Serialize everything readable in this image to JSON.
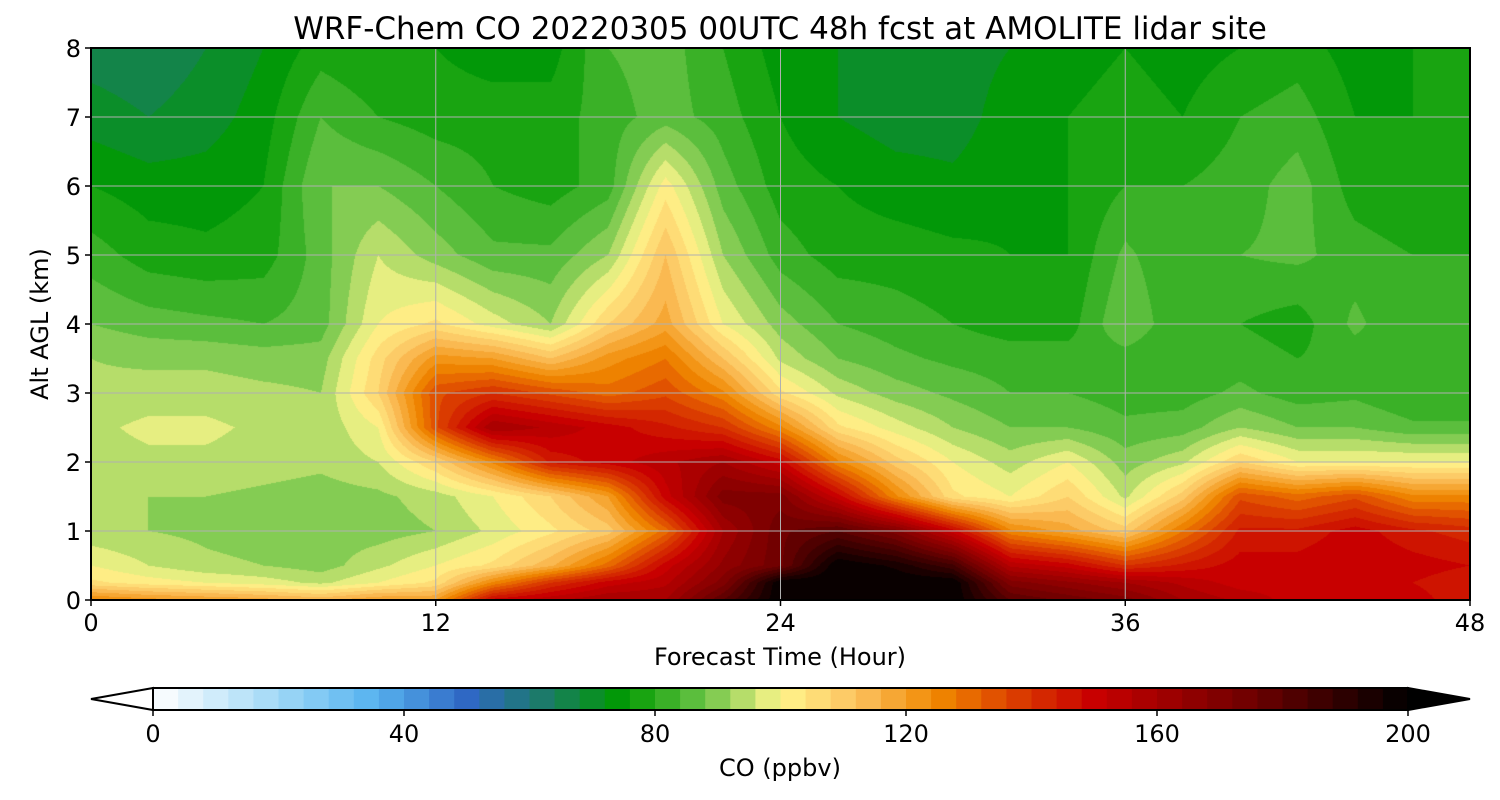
{
  "chart_data": {
    "type": "heatmap",
    "title": "WRF-Chem CO  20220305 00UTC 48h fcst at AMOLITE lidar site",
    "xlabel": "Forecast Time (Hour)",
    "ylabel": "Alt AGL (km)",
    "xlim": [
      0,
      48
    ],
    "ylim": [
      0,
      8
    ],
    "x_ticks": [
      "0",
      "12",
      "24",
      "36",
      "48"
    ],
    "y_ticks": [
      "0",
      "1",
      "2",
      "3",
      "4",
      "5",
      "6",
      "7",
      "8"
    ],
    "grid": true,
    "colorbar": {
      "label": "CO  (ppbv)",
      "range": [
        0,
        200
      ],
      "ticks": [
        "0",
        "40",
        "80",
        "120",
        "160",
        "200"
      ],
      "extend": "both",
      "orientation": "horizontal",
      "placement": "bottom",
      "colors": [
        [
          0,
          "#ffffff"
        ],
        [
          20,
          "#a0d8f6"
        ],
        [
          35,
          "#58b4f0"
        ],
        [
          50,
          "#2f68c4"
        ],
        [
          62,
          "#1c7a6a"
        ],
        [
          75,
          "#009a00"
        ],
        [
          88,
          "#6cc448"
        ],
        [
          100,
          "#fff68c"
        ],
        [
          112,
          "#fcc260"
        ],
        [
          125,
          "#f08800"
        ],
        [
          137,
          "#dc4000"
        ],
        [
          150,
          "#c80000"
        ],
        [
          175,
          "#6e0000"
        ],
        [
          200,
          "#000000"
        ]
      ]
    },
    "x": [
      0,
      2,
      4,
      6,
      8,
      10,
      12,
      14,
      16,
      18,
      20,
      22,
      24,
      26,
      28,
      30,
      32,
      34,
      36,
      38,
      40,
      42,
      44,
      46,
      48
    ],
    "y": [
      0,
      0.25,
      0.5,
      1,
      1.5,
      2,
      2.5,
      3,
      3.5,
      4,
      5,
      6,
      7,
      8
    ],
    "values": [
      [
        125,
        122,
        120,
        118,
        115,
        120,
        120,
        150,
        155,
        160,
        160,
        180,
        200,
        200,
        200,
        200,
        180,
        175,
        170,
        160,
        155,
        150,
        152,
        150,
        145
      ],
      [
        105,
        102,
        100,
        98,
        95,
        100,
        105,
        125,
        140,
        150,
        155,
        170,
        200,
        200,
        200,
        200,
        170,
        165,
        160,
        155,
        150,
        150,
        150,
        148,
        145
      ],
      [
        100,
        96,
        93,
        92,
        90,
        95,
        100,
        105,
        115,
        130,
        150,
        165,
        175,
        200,
        195,
        185,
        155,
        150,
        140,
        145,
        150,
        150,
        152,
        150,
        148
      ],
      [
        93,
        92,
        91,
        90,
        90,
        90,
        92,
        97,
        103,
        110,
        130,
        160,
        175,
        180,
        170,
        150,
        125,
        118,
        110,
        128,
        145,
        145,
        150,
        145,
        142
      ],
      [
        92,
        92,
        92,
        91,
        90,
        91,
        94,
        100,
        108,
        120,
        150,
        170,
        170,
        150,
        125,
        105,
        100,
        108,
        95,
        110,
        135,
        130,
        135,
        125,
        125
      ],
      [
        94,
        95,
        95,
        94,
        93,
        96,
        108,
        125,
        145,
        150,
        155,
        160,
        150,
        125,
        110,
        100,
        94,
        100,
        90,
        95,
        108,
        100,
        100,
        100,
        100
      ],
      [
        95,
        97,
        97,
        95,
        93,
        100,
        135,
        160,
        155,
        150,
        145,
        140,
        125,
        105,
        98,
        92,
        88,
        88,
        85,
        86,
        92,
        88,
        88,
        85,
        85
      ],
      [
        93,
        94,
        94,
        93,
        92,
        108,
        135,
        140,
        135,
        130,
        135,
        125,
        105,
        95,
        90,
        87,
        84,
        84,
        82,
        82,
        85,
        82,
        83,
        80,
        80
      ],
      [
        92,
        91,
        91,
        90,
        90,
        106,
        122,
        120,
        112,
        122,
        128,
        112,
        95,
        88,
        85,
        83,
        82,
        82,
        82,
        80,
        82,
        80,
        82,
        80,
        80
      ],
      [
        88,
        86,
        85,
        84,
        86,
        100,
        105,
        98,
        92,
        108,
        118,
        100,
        90,
        84,
        82,
        80,
        78,
        78,
        88,
        80,
        80,
        78,
        85,
        80,
        80
      ],
      [
        82,
        78,
        77,
        78,
        86,
        96,
        90,
        85,
        85,
        92,
        112,
        92,
        82,
        78,
        78,
        77,
        76,
        76,
        85,
        80,
        84,
        85,
        82,
        80,
        80
      ],
      [
        76,
        74,
        74,
        76,
        88,
        88,
        84,
        80,
        78,
        82,
        102,
        86,
        78,
        76,
        74,
        73,
        75,
        76,
        80,
        80,
        82,
        86,
        78,
        76,
        77
      ],
      [
        70,
        68,
        70,
        74,
        84,
        80,
        78,
        78,
        78,
        82,
        86,
        82,
        76,
        72,
        70,
        70,
        74,
        76,
        78,
        76,
        80,
        82,
        76,
        76,
        76
      ],
      [
        66,
        65,
        68,
        72,
        78,
        76,
        76,
        74,
        74,
        84,
        86,
        80,
        74,
        72,
        70,
        70,
        72,
        74,
        76,
        74,
        76,
        78,
        74,
        76,
        76
      ]
    ]
  }
}
